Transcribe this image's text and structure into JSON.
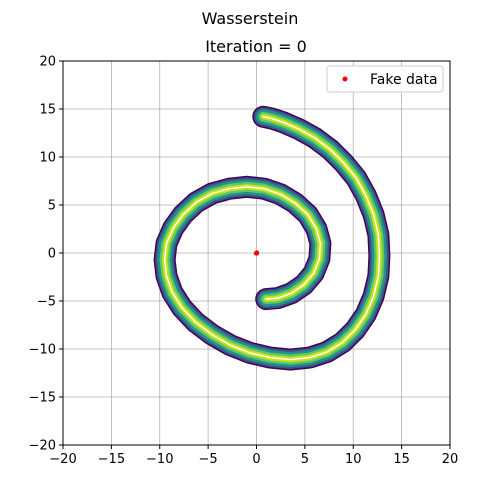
{
  "figure_title": "Wasserstein",
  "colors": {
    "band_outer": "#440154",
    "band_mid_1": "#3b528b",
    "band_mid_2": "#21918c",
    "band_mid_3": "#5ec962",
    "band_inner": "#c8e020",
    "center_line": "#ffffff",
    "fake_data": "#ff0000",
    "grid": "#b0b0b0",
    "axis": "#000000"
  },
  "chart_data": {
    "type": "scatter",
    "title": "Iteration = 0",
    "xlabel": "",
    "ylabel": "",
    "xlim": [
      -20,
      20
    ],
    "ylim": [
      -20,
      20
    ],
    "xticks": [
      -20,
      -15,
      -10,
      -5,
      0,
      5,
      10,
      15,
      20
    ],
    "yticks": [
      -20,
      -15,
      -10,
      -5,
      0,
      5,
      10,
      15,
      20
    ],
    "grid": true,
    "legend_position": "top-right",
    "series": [
      {
        "name": "Fake data",
        "marker": "dot",
        "x": [
          0.0,
          0.05,
          -0.05,
          0.02
        ],
        "y": [
          0.0,
          0.05,
          -0.03,
          -0.05
        ]
      }
    ],
    "background_contour": {
      "kind": "spiral density",
      "path": {
        "x": [
          1.0,
          2.2,
          3.6,
          4.9,
          5.9,
          6.5,
          6.6,
          6.2,
          5.3,
          4.0,
          2.5,
          0.8,
          -1.0,
          -2.8,
          -4.6,
          -6.2,
          -7.6,
          -8.6,
          -9.3,
          -9.5,
          -9.3,
          -8.7,
          -7.7,
          -6.3,
          -4.6,
          -2.7,
          -0.7,
          1.4,
          3.5,
          5.5,
          7.3,
          8.9,
          10.2,
          11.3,
          12.1,
          12.6,
          12.7,
          12.6,
          12.1,
          11.3,
          10.3,
          9.0,
          7.6,
          6.0,
          4.4,
          2.8,
          1.6,
          0.7
        ],
        "y": [
          -4.8,
          -4.7,
          -4.2,
          -3.3,
          -2.1,
          -0.6,
          1.0,
          2.5,
          4.0,
          5.2,
          6.1,
          6.7,
          6.9,
          6.7,
          6.2,
          5.3,
          4.0,
          2.6,
          1.0,
          -0.7,
          -2.4,
          -4.1,
          -5.7,
          -7.2,
          -8.5,
          -9.6,
          -10.4,
          -10.9,
          -11.1,
          -10.9,
          -10.3,
          -9.3,
          -8.0,
          -6.4,
          -4.5,
          -2.4,
          -0.3,
          1.9,
          4.0,
          6.0,
          7.8,
          9.4,
          10.8,
          12.0,
          12.9,
          13.6,
          14.0,
          14.2
        ]
      }
    }
  }
}
